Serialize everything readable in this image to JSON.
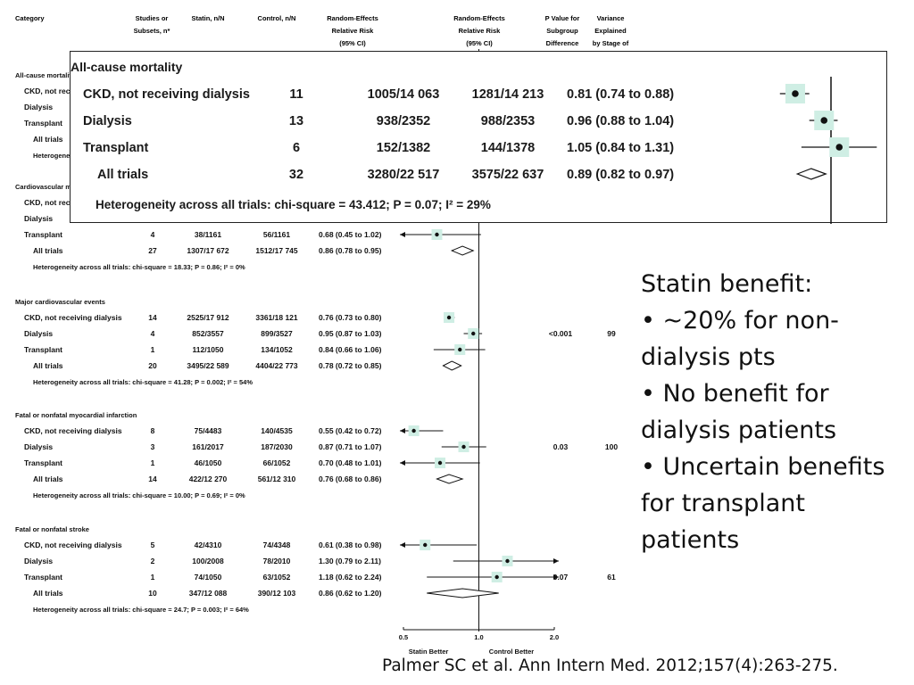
{
  "headers": {
    "category": "Category",
    "studies": [
      "Studies or",
      "Subsets, n*"
    ],
    "statin": "Statin, n/N",
    "control": "Control, n/N",
    "rr_plot": [
      "Random-Effects",
      "Relative Risk",
      "(95% CI)"
    ],
    "rr_text": [
      "Random-Effects",
      "Relative Risk",
      "(95% CI)"
    ],
    "pvalue": [
      "P Value for",
      "Subgroup",
      "Difference"
    ],
    "variance": [
      "Variance",
      "Explained",
      "by Stage of"
    ]
  },
  "chart_data": {
    "type": "forest",
    "x_scale": "log",
    "xlim": [
      0.5,
      2.0
    ],
    "reference_line": 1.0,
    "ticks": [
      "0.5",
      "1.0",
      "2.0"
    ],
    "xlabels": [
      "Statin Better",
      "Control Better"
    ],
    "groups": [
      {
        "title": "All-cause mortality",
        "rows": [
          {
            "label": "CKD, not receiving dialysis",
            "n": "11",
            "statin": "1005/14 063",
            "control": "1281/14 213",
            "ci_text": "0.81 (0.74 to 0.88)",
            "rr": 0.81,
            "lo": 0.74,
            "hi": 0.88
          },
          {
            "label": "Dialysis",
            "n": "13",
            "statin": "938/2352",
            "control": "988/2353",
            "ci_text": "0.96 (0.88 to 1.04)",
            "rr": 0.96,
            "lo": 0.88,
            "hi": 1.04
          },
          {
            "label": "Transplant",
            "n": "6",
            "statin": "152/1382",
            "control": "144/1378",
            "ci_text": "1.05 (0.84 to 1.31)",
            "rr": 1.05,
            "lo": 0.84,
            "hi": 1.31
          },
          {
            "label": "All trials",
            "n": "32",
            "statin": "3280/22 517",
            "control": "3575/22 637",
            "ci_text": "0.89 (0.82 to 0.97)",
            "rr": 0.89,
            "lo": 0.82,
            "hi": 0.97,
            "summary": true
          }
        ],
        "heterogeneity": "Heterogeneity across all trials: chi-square = 43.412; P = 0.07; I² = 29%"
      },
      {
        "title": "Cardiovascular mortality",
        "rows": [
          {
            "label": "CKD, not receiving dialysis",
            "n": "",
            "statin": "",
            "control": "",
            "ci_text": "",
            "rr": null,
            "lo": null,
            "hi": null
          },
          {
            "label": "Dialysis",
            "n": "",
            "statin": "",
            "control": "",
            "ci_text": "",
            "rr": null,
            "lo": null,
            "hi": null
          },
          {
            "label": "Transplant",
            "n": "4",
            "statin": "38/1161",
            "control": "56/1161",
            "ci_text": "0.68 (0.45 to 1.02)",
            "rr": 0.68,
            "lo": 0.45,
            "hi": 1.02
          },
          {
            "label": "All trials",
            "n": "27",
            "statin": "1307/17 672",
            "control": "1512/17 745",
            "ci_text": "0.86 (0.78 to 0.95)",
            "rr": 0.86,
            "lo": 0.78,
            "hi": 0.95,
            "summary": true
          }
        ],
        "heterogeneity": "Heterogeneity across all trials: chi-square = 18.33; P = 0.86; I² = 0%"
      },
      {
        "title": "Major cardiovascular events",
        "rows": [
          {
            "label": "CKD, not receiving dialysis",
            "n": "14",
            "statin": "2525/17 912",
            "control": "3361/18 121",
            "ci_text": "0.76 (0.73 to 0.80)",
            "rr": 0.76,
            "lo": 0.73,
            "hi": 0.8
          },
          {
            "label": "Dialysis",
            "n": "4",
            "statin": "852/3557",
            "control": "899/3527",
            "ci_text": "0.95 (0.87 to 1.03)",
            "rr": 0.95,
            "lo": 0.87,
            "hi": 1.03,
            "p": "<0.001",
            "var": "99"
          },
          {
            "label": "Transplant",
            "n": "1",
            "statin": "112/1050",
            "control": "134/1052",
            "ci_text": "0.84 (0.66 to 1.06)",
            "rr": 0.84,
            "lo": 0.66,
            "hi": 1.06
          },
          {
            "label": "All trials",
            "n": "20",
            "statin": "3495/22 589",
            "control": "4404/22 773",
            "ci_text": "0.78 (0.72 to 0.85)",
            "rr": 0.78,
            "lo": 0.72,
            "hi": 0.85,
            "summary": true
          }
        ],
        "heterogeneity": "Heterogeneity across all trials: chi-square = 41.28; P = 0.002; I² = 54%"
      },
      {
        "title": "Fatal or nonfatal myocardial infarction",
        "rows": [
          {
            "label": "CKD, not receiving dialysis",
            "n": "8",
            "statin": "75/4483",
            "control": "140/4535",
            "ci_text": "0.55 (0.42 to 0.72)",
            "rr": 0.55,
            "lo": 0.42,
            "hi": 0.72
          },
          {
            "label": "Dialysis",
            "n": "3",
            "statin": "161/2017",
            "control": "187/2030",
            "ci_text": "0.87 (0.71 to 1.07)",
            "rr": 0.87,
            "lo": 0.71,
            "hi": 1.07,
            "p": "0.03",
            "var": "100"
          },
          {
            "label": "Transplant",
            "n": "1",
            "statin": "46/1050",
            "control": "66/1052",
            "ci_text": "0.70 (0.48 to 1.01)",
            "rr": 0.7,
            "lo": 0.48,
            "hi": 1.01
          },
          {
            "label": "All trials",
            "n": "14",
            "statin": "422/12 270",
            "control": "561/12 310",
            "ci_text": "0.76 (0.68 to 0.86)",
            "rr": 0.76,
            "lo": 0.68,
            "hi": 0.86,
            "summary": true
          }
        ],
        "heterogeneity": "Heterogeneity across all trials: chi-square = 10.00; P = 0.69; I² = 0%"
      },
      {
        "title": "Fatal or nonfatal stroke",
        "rows": [
          {
            "label": "CKD, not receiving dialysis",
            "n": "5",
            "statin": "42/4310",
            "control": "74/4348",
            "ci_text": "0.61 (0.38 to 0.98)",
            "rr": 0.61,
            "lo": 0.38,
            "hi": 0.98
          },
          {
            "label": "Dialysis",
            "n": "2",
            "statin": "100/2008",
            "control": "78/2010",
            "ci_text": "1.30 (0.79 to 2.11)",
            "rr": 1.3,
            "lo": 0.79,
            "hi": 2.11
          },
          {
            "label": "Transplant",
            "n": "1",
            "statin": "74/1050",
            "control": "63/1052",
            "ci_text": "1.18 (0.62 to 2.24)",
            "rr": 1.18,
            "lo": 0.62,
            "hi": 2.24,
            "p": "0.07",
            "var": "61"
          },
          {
            "label": "All trials",
            "n": "10",
            "statin": "347/12 088",
            "control": "390/12 103",
            "ci_text": "0.86 (0.62 to 1.20)",
            "rr": 0.86,
            "lo": 0.62,
            "hi": 1.2,
            "summary": true
          }
        ],
        "heterogeneity": "Heterogeneity across all trials: chi-square = 24.7; P = 0.003; I² = 64%"
      }
    ]
  },
  "inset": {
    "title": "All-cause mortality",
    "rows": [
      {
        "label": "CKD, not receiving dialysis",
        "n": "11",
        "statin": "1005/14 063",
        "control": "1281/14 213",
        "ci_text": "0.81 (0.74 to 0.88)",
        "rr": 0.81,
        "lo": 0.74,
        "hi": 0.88
      },
      {
        "label": "Dialysis",
        "n": "13",
        "statin": "938/2352",
        "control": "988/2353",
        "ci_text": "0.96 (0.88 to 1.04)",
        "rr": 0.96,
        "lo": 0.88,
        "hi": 1.04
      },
      {
        "label": "Transplant",
        "n": "6",
        "statin": "152/1382",
        "control": "144/1378",
        "ci_text": "1.05 (0.84 to 1.31)",
        "rr": 1.05,
        "lo": 0.84,
        "hi": 1.31
      },
      {
        "label": "All trials",
        "n": "32",
        "statin": "3280/22 517",
        "control": "3575/22 637",
        "ci_text": "0.89 (0.82 to 0.97)",
        "rr": 0.89,
        "lo": 0.82,
        "hi": 0.97,
        "summary": true
      }
    ],
    "heterogeneity": "Heterogeneity across all trials: chi-square = 43.412; P = 0.07; I² = 29%"
  },
  "callout": {
    "lines": [
      "Statin benefit:",
      "• ~20% for non-",
      "dialysis pts",
      "• No benefit for",
      "dialysis patients",
      "• Uncertain benefits",
      "for transplant",
      "patients"
    ]
  },
  "citation": "Palmer SC et al. Ann Intern Med. 2012;157(4):263-275.",
  "colors": {
    "marker_box": "#cfeee4",
    "marker_dot": "#111111",
    "line": "#111111",
    "text": "#111111"
  }
}
